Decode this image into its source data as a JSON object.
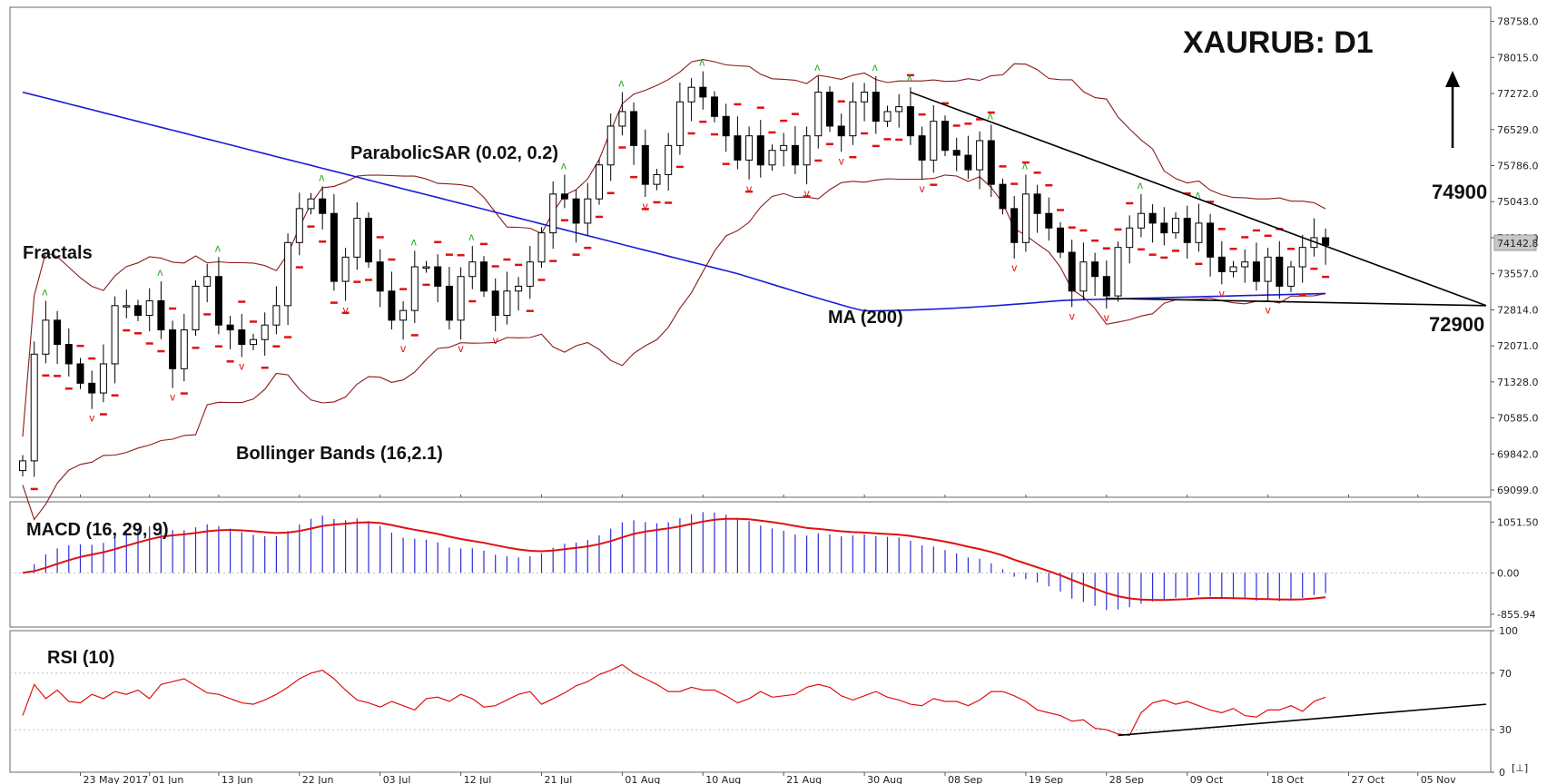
{
  "chart_data": [
    {
      "type": "candlestick",
      "title": "XAURUB: D1",
      "y_ticks": [
        "78758.0",
        "78015.0",
        "77272.0",
        "76529.0",
        "75786.0",
        "75043.0",
        "74300.0",
        "73557.0",
        "72814.0",
        "72071.0",
        "71328.0",
        "70585.0",
        "69842.0",
        "69099.0"
      ],
      "ylim": [
        68950,
        79050
      ],
      "current_price_label": "74142.8",
      "x_ticks": [
        "23 May 2017",
        "01 Jun",
        "13 Jun",
        "22 Jun",
        "03 Jul",
        "12 Jul",
        "21 Jul",
        "01 Aug",
        "10 Aug",
        "21 Aug",
        "30 Aug",
        "08 Sep",
        "19 Sep",
        "28 Sep",
        "09 Oct",
        "18 Oct",
        "27 Oct",
        "05 Nov"
      ],
      "annotations": {
        "fractals": "Fractals",
        "parabolic_sar": "ParabolicSAR (0.02, 0.2)",
        "ma": "MA (200)",
        "bollinger": "Bollinger Bands (16,2.1)",
        "resistance_level": "74900",
        "support_level": "72900"
      },
      "close": [
        69700,
        71900,
        72600,
        72100,
        71700,
        71300,
        71100,
        71700,
        72900,
        72900,
        72700,
        73000,
        72400,
        71600,
        72400,
        73300,
        73500,
        72500,
        72400,
        72100,
        72200,
        72500,
        72900,
        74200,
        74900,
        75100,
        74800,
        73400,
        73900,
        74700,
        73800,
        73200,
        72600,
        72800,
        73700,
        73700,
        73300,
        72600,
        73500,
        73800,
        73200,
        72700,
        73200,
        73300,
        73800,
        74400,
        75200,
        75100,
        74600,
        75100,
        75800,
        76600,
        76900,
        76200,
        75400,
        75600,
        76200,
        77100,
        77400,
        77200,
        76800,
        76400,
        75900,
        76400,
        75800,
        76100,
        76200,
        75800,
        76400,
        77300,
        76600,
        76400,
        77100,
        77300,
        76700,
        76900,
        77000,
        76400,
        75900,
        76700,
        76100,
        76000,
        75700,
        76300,
        75400,
        74900,
        74200,
        75200,
        74800,
        74500,
        74000,
        73200,
        73800,
        73500,
        73100,
        74100,
        74500,
        74800,
        74600,
        74400,
        74700,
        74200,
        74600,
        73900,
        73600,
        73700,
        73800,
        73400,
        73900,
        73300,
        73700,
        74100,
        74300,
        74142.8
      ]
    },
    {
      "type": "bar+line",
      "title": "MACD (16, 29, 9)",
      "y_ticks": [
        "1051.50",
        "0.00",
        "-855.94"
      ],
      "ylim": [
        -1120,
        1470
      ]
    },
    {
      "type": "line",
      "title": "RSI (10)",
      "y_ticks": [
        "100",
        "70",
        "30",
        "0"
      ],
      "ylim": [
        0,
        100
      ],
      "values": [
        40,
        62,
        52,
        58,
        50,
        49,
        55,
        52,
        57,
        55,
        58,
        52,
        62,
        64,
        66,
        61,
        56,
        55,
        52,
        49,
        48,
        51,
        55,
        60,
        66,
        70,
        72,
        66,
        58,
        51,
        49,
        46,
        50,
        47,
        44,
        52,
        53,
        50,
        55,
        52,
        46,
        47,
        51,
        55,
        57,
        48,
        52,
        56,
        61,
        64,
        69,
        72,
        76,
        70,
        66,
        62,
        57,
        57,
        60,
        58,
        58,
        54,
        49,
        52,
        57,
        53,
        54,
        55,
        60,
        62,
        60,
        54,
        51,
        54,
        57,
        53,
        51,
        48,
        47,
        52,
        50,
        50,
        47,
        51,
        57,
        57,
        54,
        50,
        44,
        42,
        40,
        36,
        37,
        31,
        30,
        27,
        26,
        42,
        49,
        51,
        48,
        50,
        47,
        44,
        42,
        45,
        40,
        39,
        44,
        44,
        47,
        43,
        50,
        53
      ]
    }
  ]
}
